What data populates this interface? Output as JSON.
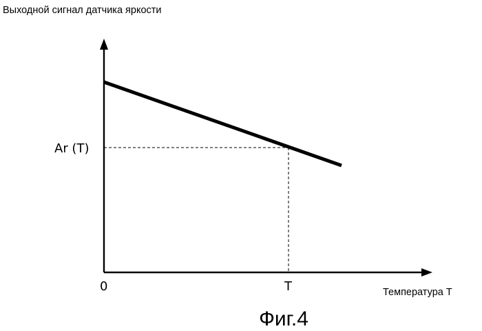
{
  "y_axis_title": "Выходной сигнал датчика яркости",
  "x_axis_title": "Температура T",
  "origin_label": "0",
  "x_mark_label": "T",
  "y_mark_label": "Ar (T)",
  "figure_caption": "Фиг.4",
  "colors": {
    "line": "#000000",
    "axes": "#000000",
    "guides": "#000000",
    "background": "#ffffff"
  }
}
